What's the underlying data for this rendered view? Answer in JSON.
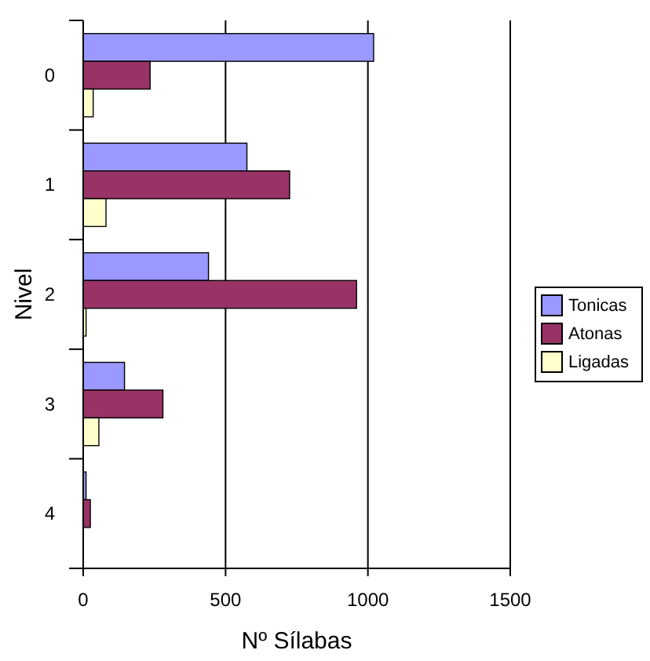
{
  "chart_data": {
    "type": "bar",
    "orientation": "horizontal",
    "xlabel": "Nº Sílabas",
    "ylabel": "Nivel",
    "categories": [
      "0",
      "1",
      "2",
      "3",
      "4"
    ],
    "series": [
      {
        "name": "Tonicas",
        "color": "#9999ff",
        "values": [
          1020,
          575,
          440,
          145,
          10
        ]
      },
      {
        "name": "Atonas",
        "color": "#993366",
        "values": [
          235,
          725,
          960,
          280,
          25
        ]
      },
      {
        "name": "Ligadas",
        "color": "#ffffcc",
        "values": [
          35,
          80,
          10,
          55,
          0
        ]
      }
    ],
    "xlim": [
      0,
      1500
    ],
    "xticks": [
      0,
      500,
      1000,
      1500
    ],
    "grid": "x",
    "legend": "right"
  }
}
